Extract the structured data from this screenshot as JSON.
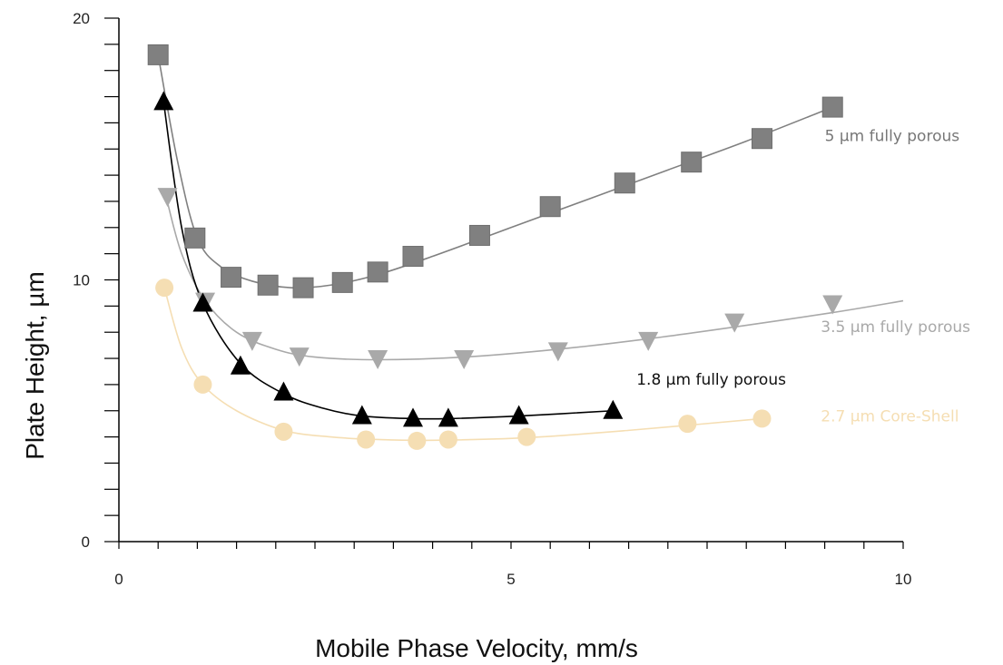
{
  "chart_data": {
    "type": "scatter",
    "xlabel": "Mobile Phase Velocity, mm/s",
    "ylabel": "Plate Height, µm",
    "xlim": [
      0,
      10
    ],
    "ylim": [
      0,
      20
    ],
    "x_ticks": [
      0,
      5,
      10
    ],
    "y_ticks": [
      0,
      10,
      20
    ],
    "grid": false,
    "series": [
      {
        "name": "5 µm fully porous",
        "marker": "square",
        "color": "#808080",
        "points": [
          [
            0.5,
            18.6
          ],
          [
            0.97,
            11.6
          ],
          [
            1.43,
            10.1
          ],
          [
            1.9,
            9.8
          ],
          [
            2.35,
            9.7
          ],
          [
            2.85,
            9.9
          ],
          [
            3.3,
            10.3
          ],
          [
            3.75,
            10.9
          ],
          [
            4.6,
            11.7
          ],
          [
            5.5,
            12.8
          ],
          [
            6.45,
            13.7
          ],
          [
            7.3,
            14.5
          ],
          [
            8.2,
            15.4
          ],
          [
            9.1,
            16.6
          ]
        ],
        "curve": [
          [
            0.5,
            18.6
          ],
          [
            0.75,
            14.5
          ],
          [
            1.0,
            11.6
          ],
          [
            1.3,
            10.5
          ],
          [
            1.7,
            9.95
          ],
          [
            2.2,
            9.7
          ],
          [
            2.7,
            9.8
          ],
          [
            3.3,
            10.2
          ],
          [
            4.0,
            10.9
          ],
          [
            5.0,
            12.0
          ],
          [
            6.0,
            13.1
          ],
          [
            7.0,
            14.2
          ],
          [
            8.0,
            15.3
          ],
          [
            9.1,
            16.6
          ]
        ]
      },
      {
        "name": "3.5 µm fully porous",
        "marker": "triangle-down",
        "color": "#a9a9a9",
        "points": [
          [
            0.62,
            13.2
          ],
          [
            1.1,
            9.2
          ],
          [
            1.7,
            7.7
          ],
          [
            2.3,
            7.1
          ],
          [
            3.3,
            7.0
          ],
          [
            4.4,
            7.0
          ],
          [
            5.6,
            7.3
          ],
          [
            6.75,
            7.7
          ],
          [
            7.85,
            8.4
          ],
          [
            9.1,
            9.1
          ]
        ],
        "curve": [
          [
            0.6,
            13.2
          ],
          [
            0.8,
            11.0
          ],
          [
            1.1,
            9.2
          ],
          [
            1.5,
            8.0
          ],
          [
            2.0,
            7.35
          ],
          [
            2.5,
            7.05
          ],
          [
            3.3,
            6.95
          ],
          [
            4.4,
            7.05
          ],
          [
            5.6,
            7.35
          ],
          [
            6.75,
            7.75
          ],
          [
            7.85,
            8.2
          ],
          [
            9.1,
            8.75
          ],
          [
            10.0,
            9.2
          ]
        ]
      },
      {
        "name": "1.8 µm fully porous",
        "marker": "triangle-up",
        "color": "#000000",
        "points": [
          [
            0.57,
            16.8
          ],
          [
            1.07,
            9.1
          ],
          [
            1.55,
            6.7
          ],
          [
            2.1,
            5.7
          ],
          [
            3.1,
            4.8
          ],
          [
            3.75,
            4.7
          ],
          [
            4.2,
            4.7
          ],
          [
            5.1,
            4.8
          ],
          [
            6.3,
            5.0
          ]
        ],
        "curve": [
          [
            0.57,
            16.8
          ],
          [
            0.8,
            12.0
          ],
          [
            1.07,
            9.1
          ],
          [
            1.55,
            6.8
          ],
          [
            2.1,
            5.65
          ],
          [
            2.6,
            5.1
          ],
          [
            3.1,
            4.8
          ],
          [
            3.75,
            4.7
          ],
          [
            4.2,
            4.7
          ],
          [
            5.1,
            4.8
          ],
          [
            6.3,
            5.0
          ]
        ]
      },
      {
        "name": "2.7 µm Core-Shell",
        "marker": "circle",
        "color": "#f5deb3",
        "points": [
          [
            0.58,
            9.7
          ],
          [
            1.07,
            6.0
          ],
          [
            2.1,
            4.2
          ],
          [
            3.15,
            3.9
          ],
          [
            3.8,
            3.85
          ],
          [
            4.2,
            3.9
          ],
          [
            5.2,
            4.0
          ],
          [
            7.25,
            4.5
          ],
          [
            8.2,
            4.7
          ]
        ],
        "curve": [
          [
            0.58,
            9.7
          ],
          [
            0.8,
            7.4
          ],
          [
            1.07,
            6.0
          ],
          [
            1.5,
            5.0
          ],
          [
            2.1,
            4.25
          ],
          [
            2.7,
            4.0
          ],
          [
            3.3,
            3.9
          ],
          [
            4.0,
            3.87
          ],
          [
            5.2,
            3.97
          ],
          [
            6.5,
            4.25
          ],
          [
            8.2,
            4.7
          ]
        ]
      }
    ],
    "labels": [
      {
        "text": "5 µm fully porous",
        "color": "#777777",
        "at": [
          9.0,
          15.3
        ]
      },
      {
        "text": "3.5 µm fully porous",
        "color": "#a9a9a9",
        "at": [
          8.95,
          8.0
        ]
      },
      {
        "text": "1.8 µm fully porous",
        "color": "#111111",
        "at": [
          6.6,
          6.0
        ]
      },
      {
        "text": "2.7 µm Core-Shell",
        "color": "#f5deb3",
        "at": [
          8.95,
          4.6
        ]
      }
    ]
  }
}
